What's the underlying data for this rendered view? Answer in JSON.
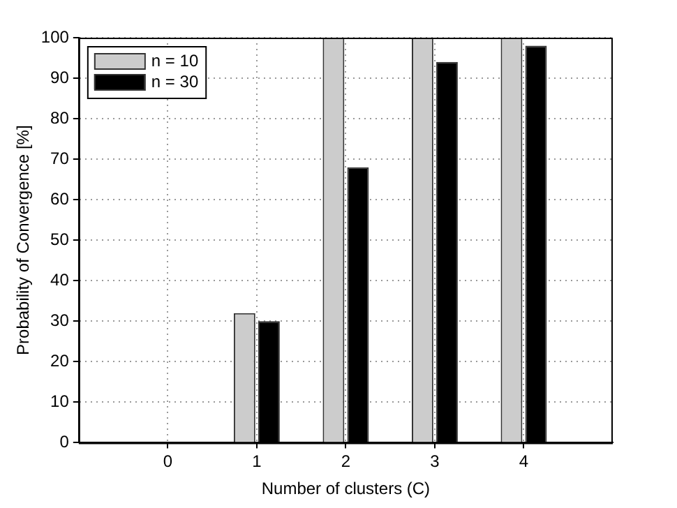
{
  "chart_data": {
    "type": "bar",
    "xlabel": "Number of clusters (C)",
    "ylabel": "Probability of Convergence [%]",
    "x": [
      0,
      1,
      2,
      3,
      4
    ],
    "xlim": [
      -1,
      5
    ],
    "xticks": [
      0,
      1,
      2,
      3,
      4
    ],
    "ylim": [
      0,
      100
    ],
    "yticks": [
      0,
      10,
      20,
      30,
      40,
      50,
      60,
      70,
      80,
      90,
      100
    ],
    "series": [
      {
        "name": "n = 10",
        "color": "#cccccc",
        "values": [
          0,
          32,
          100,
          100,
          100
        ]
      },
      {
        "name": "n = 30",
        "color": "#000000",
        "values": [
          0,
          30,
          68,
          94,
          98
        ]
      }
    ],
    "grid": true,
    "legend": "top left"
  }
}
